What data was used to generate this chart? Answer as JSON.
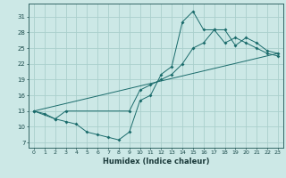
{
  "xlabel": "Humidex (Indice chaleur)",
  "bg_color": "#cce8e6",
  "grid_color": "#aacfcc",
  "line_color": "#1a6b6b",
  "xlim": [
    -0.5,
    23.5
  ],
  "ylim": [
    6.0,
    33.5
  ],
  "xticks": [
    0,
    1,
    2,
    3,
    4,
    5,
    6,
    7,
    8,
    9,
    10,
    11,
    12,
    13,
    14,
    15,
    16,
    17,
    18,
    19,
    20,
    21,
    22,
    23
  ],
  "yticks": [
    7,
    10,
    13,
    16,
    19,
    22,
    25,
    28,
    31
  ],
  "line1_x": [
    0,
    1,
    2,
    3,
    4,
    5,
    6,
    7,
    8,
    9,
    10,
    11,
    12,
    13,
    14,
    15,
    16,
    17,
    18,
    19,
    20,
    21,
    22,
    23
  ],
  "line1_y": [
    13,
    12.5,
    11.5,
    11,
    10.5,
    9.0,
    8.5,
    8.0,
    7.5,
    9.0,
    15.0,
    16.0,
    20.0,
    21.5,
    30.0,
    32.0,
    28.5,
    28.5,
    26.0,
    27.0,
    26.0,
    25.0,
    24.0,
    23.5
  ],
  "line2_x": [
    0,
    2,
    3,
    9,
    10,
    11,
    12,
    13,
    14,
    15,
    16,
    17,
    18,
    19,
    20,
    21,
    22,
    23
  ],
  "line2_y": [
    13,
    11.5,
    13,
    13,
    17,
    18,
    19,
    20,
    22,
    25,
    26,
    28.5,
    28.5,
    25.5,
    27.0,
    26.0,
    24.5,
    24.0
  ],
  "line3_x": [
    0,
    23
  ],
  "line3_y": [
    13,
    24
  ]
}
